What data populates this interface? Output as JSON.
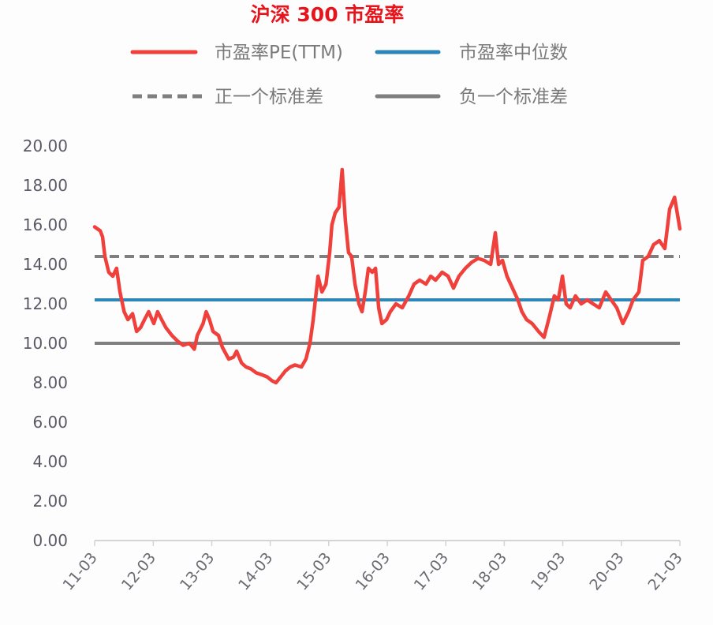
{
  "chart_data": {
    "type": "line",
    "title": "沪深 300 市盈率",
    "xlabel": "",
    "ylabel": "",
    "ylim": [
      0,
      20
    ],
    "xlim": [
      "2011-03-01",
      "2021-03-01"
    ],
    "grid": false,
    "legend_placement": "top",
    "yticks": [
      "0.00",
      "2.00",
      "4.00",
      "6.00",
      "8.00",
      "10.00",
      "12.00",
      "14.00",
      "16.00",
      "18.00",
      "20.00"
    ],
    "xticks": [
      {
        "label": "11-03",
        "date": "2011-03-01"
      },
      {
        "label": "12-03",
        "date": "2012-03-01"
      },
      {
        "label": "13-03",
        "date": "2013-03-01"
      },
      {
        "label": "14-03",
        "date": "2014-03-01"
      },
      {
        "label": "15-03",
        "date": "2015-03-01"
      },
      {
        "label": "16-03",
        "date": "2016-03-01"
      },
      {
        "label": "17-03",
        "date": "2017-03-01"
      },
      {
        "label": "18-03",
        "date": "2018-03-01"
      },
      {
        "label": "19-03",
        "date": "2019-03-01"
      },
      {
        "label": "20-03",
        "date": "2020-03-01"
      },
      {
        "label": "21-03",
        "date": "2021-03-01"
      }
    ],
    "series": [
      {
        "name": "市盈率PE(TTM)",
        "color": "#f0403c",
        "style": "solid",
        "points": [
          [
            "2011-03-01",
            15.9
          ],
          [
            "2011-04-05",
            15.7
          ],
          [
            "2011-04-19",
            15.4
          ],
          [
            "2011-05-04",
            14.4
          ],
          [
            "2011-05-28",
            13.6
          ],
          [
            "2011-06-22",
            13.4
          ],
          [
            "2011-07-16",
            13.8
          ],
          [
            "2011-08-06",
            12.6
          ],
          [
            "2011-09-01",
            11.6
          ],
          [
            "2011-09-25",
            11.2
          ],
          [
            "2011-10-24",
            11.5
          ],
          [
            "2011-11-18",
            10.6
          ],
          [
            "2011-12-13",
            10.8
          ],
          [
            "2012-01-06",
            11.2
          ],
          [
            "2012-02-01",
            11.6
          ],
          [
            "2012-03-04",
            11.0
          ],
          [
            "2012-03-28",
            11.6
          ],
          [
            "2012-04-22",
            11.2
          ],
          [
            "2012-05-18",
            10.8
          ],
          [
            "2012-06-25",
            10.4
          ],
          [
            "2012-08-01",
            10.1
          ],
          [
            "2012-09-04",
            9.9
          ],
          [
            "2012-10-13",
            10.0
          ],
          [
            "2012-11-12",
            9.7
          ],
          [
            "2012-12-01",
            10.4
          ],
          [
            "2013-01-06",
            11.0
          ],
          [
            "2013-01-25",
            11.6
          ],
          [
            "2013-02-15",
            11.2
          ],
          [
            "2013-03-09",
            10.6
          ],
          [
            "2013-04-12",
            10.4
          ],
          [
            "2013-05-06",
            9.8
          ],
          [
            "2013-06-15",
            9.2
          ],
          [
            "2013-07-15",
            9.3
          ],
          [
            "2013-08-03",
            9.6
          ],
          [
            "2013-09-03",
            9.0
          ],
          [
            "2013-10-01",
            8.8
          ],
          [
            "2013-11-01",
            8.7
          ],
          [
            "2013-12-04",
            8.5
          ],
          [
            "2014-01-09",
            8.4
          ],
          [
            "2014-02-09",
            8.3
          ],
          [
            "2014-03-12",
            8.1
          ],
          [
            "2014-04-06",
            8.0
          ],
          [
            "2014-05-06",
            8.3
          ],
          [
            "2014-06-04",
            8.6
          ],
          [
            "2014-07-04",
            8.8
          ],
          [
            "2014-08-03",
            8.9
          ],
          [
            "2014-09-12",
            8.8
          ],
          [
            "2014-10-10",
            9.2
          ],
          [
            "2014-11-04",
            10.0
          ],
          [
            "2014-11-24",
            11.2
          ],
          [
            "2014-12-24",
            13.4
          ],
          [
            "2015-01-18",
            12.6
          ],
          [
            "2015-02-12",
            13.0
          ],
          [
            "2015-03-07",
            14.6
          ],
          [
            "2015-03-21",
            16.0
          ],
          [
            "2015-04-10",
            16.6
          ],
          [
            "2015-05-04",
            16.9
          ],
          [
            "2015-05-24",
            18.8
          ],
          [
            "2015-06-13",
            16.2
          ],
          [
            "2015-07-03",
            14.6
          ],
          [
            "2015-07-22",
            14.4
          ],
          [
            "2015-08-12",
            13.0
          ],
          [
            "2015-09-06",
            12.0
          ],
          [
            "2015-09-25",
            11.6
          ],
          [
            "2015-10-15",
            12.6
          ],
          [
            "2015-11-04",
            13.8
          ],
          [
            "2015-11-28",
            13.6
          ],
          [
            "2015-12-18",
            13.8
          ],
          [
            "2016-01-07",
            11.8
          ],
          [
            "2016-01-27",
            11.0
          ],
          [
            "2016-02-25",
            11.2
          ],
          [
            "2016-03-19",
            11.6
          ],
          [
            "2016-04-24",
            12.0
          ],
          [
            "2016-06-02",
            11.8
          ],
          [
            "2016-07-13",
            12.4
          ],
          [
            "2016-08-15",
            13.0
          ],
          [
            "2016-09-19",
            13.2
          ],
          [
            "2016-10-28",
            13.0
          ],
          [
            "2016-11-27",
            13.4
          ],
          [
            "2016-12-27",
            13.2
          ],
          [
            "2017-02-06",
            13.6
          ],
          [
            "2017-03-15",
            13.4
          ],
          [
            "2017-04-18",
            12.8
          ],
          [
            "2017-05-22",
            13.4
          ],
          [
            "2017-07-01",
            13.8
          ],
          [
            "2017-08-09",
            14.1
          ],
          [
            "2017-09-18",
            14.3
          ],
          [
            "2017-10-27",
            14.2
          ],
          [
            "2017-12-06",
            14.0
          ],
          [
            "2018-01-04",
            15.6
          ],
          [
            "2018-01-24",
            14.0
          ],
          [
            "2018-02-18",
            14.2
          ],
          [
            "2018-03-18",
            13.4
          ],
          [
            "2018-04-21",
            12.8
          ],
          [
            "2018-05-25",
            12.2
          ],
          [
            "2018-06-19",
            11.6
          ],
          [
            "2018-07-18",
            11.2
          ],
          [
            "2018-08-22",
            11.0
          ],
          [
            "2018-10-01",
            10.6
          ],
          [
            "2018-11-04",
            10.3
          ],
          [
            "2018-12-09",
            11.4
          ],
          [
            "2019-01-07",
            12.4
          ],
          [
            "2019-02-01",
            12.2
          ],
          [
            "2019-02-27",
            13.4
          ],
          [
            "2019-03-22",
            12.0
          ],
          [
            "2019-04-16",
            11.8
          ],
          [
            "2019-05-19",
            12.4
          ],
          [
            "2019-06-24",
            12.0
          ],
          [
            "2019-08-01",
            12.2
          ],
          [
            "2019-09-06",
            12.0
          ],
          [
            "2019-10-15",
            11.8
          ],
          [
            "2019-11-24",
            12.6
          ],
          [
            "2019-12-28",
            12.2
          ],
          [
            "2020-02-01",
            11.8
          ],
          [
            "2020-03-10",
            11.0
          ],
          [
            "2020-04-15",
            11.6
          ],
          [
            "2020-05-13",
            12.2
          ],
          [
            "2020-06-18",
            12.6
          ],
          [
            "2020-07-12",
            14.2
          ],
          [
            "2020-08-15",
            14.4
          ],
          [
            "2020-09-18",
            15.0
          ],
          [
            "2020-10-24",
            15.2
          ],
          [
            "2020-11-27",
            14.8
          ],
          [
            "2020-12-27",
            16.8
          ],
          [
            "2021-01-27",
            17.4
          ],
          [
            "2021-03-01",
            15.8
          ]
        ]
      },
      {
        "name": "市盈率中位数",
        "color": "#2e86b8",
        "style": "solid",
        "value": 12.2
      },
      {
        "name": "正一个标准差",
        "color": "#7f7f7f",
        "style": "dashed",
        "value": 14.4
      },
      {
        "name": "负一个标准差",
        "color": "#7f7f7f",
        "style": "solid",
        "value": 10.0
      }
    ]
  }
}
